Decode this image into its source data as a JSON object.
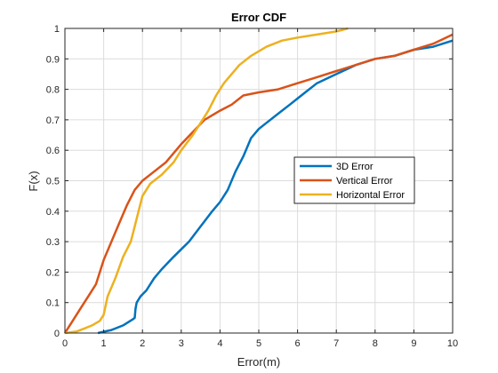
{
  "chart_data": {
    "type": "line",
    "title": "Error CDF",
    "xlabel": "Error(m)",
    "ylabel": "F(x)",
    "xlim": [
      0,
      10
    ],
    "ylim": [
      0,
      1
    ],
    "xticks": [
      "0",
      "1",
      "2",
      "3",
      "4",
      "5",
      "6",
      "7",
      "8",
      "9",
      "10"
    ],
    "yticks": [
      "0",
      "0.1",
      "0.2",
      "0.3",
      "0.4",
      "0.5",
      "0.6",
      "0.7",
      "0.8",
      "0.9",
      "1"
    ],
    "grid": true,
    "legend_position": "center-right",
    "series": [
      {
        "name": "3D Error",
        "color": "#0072BD",
        "points": [
          [
            0.85,
            0
          ],
          [
            1.2,
            0.01
          ],
          [
            1.5,
            0.025
          ],
          [
            1.75,
            0.045
          ],
          [
            1.8,
            0.05
          ],
          [
            1.82,
            0.08
          ],
          [
            1.85,
            0.1
          ],
          [
            1.95,
            0.12
          ],
          [
            2.1,
            0.14
          ],
          [
            2.3,
            0.18
          ],
          [
            2.5,
            0.21
          ],
          [
            2.8,
            0.25
          ],
          [
            3.0,
            0.275
          ],
          [
            3.2,
            0.3
          ],
          [
            3.5,
            0.35
          ],
          [
            3.8,
            0.4
          ],
          [
            4.0,
            0.43
          ],
          [
            4.2,
            0.47
          ],
          [
            4.4,
            0.53
          ],
          [
            4.6,
            0.58
          ],
          [
            4.8,
            0.64
          ],
          [
            5.0,
            0.67
          ],
          [
            5.2,
            0.69
          ],
          [
            5.5,
            0.72
          ],
          [
            5.8,
            0.75
          ],
          [
            6.0,
            0.77
          ],
          [
            6.2,
            0.79
          ],
          [
            6.5,
            0.82
          ],
          [
            7.0,
            0.85
          ],
          [
            7.5,
            0.88
          ],
          [
            8.0,
            0.9
          ],
          [
            8.5,
            0.91
          ],
          [
            9.0,
            0.93
          ],
          [
            9.5,
            0.94
          ],
          [
            10.0,
            0.96
          ]
        ]
      },
      {
        "name": "Vertical Error",
        "color": "#D95319",
        "points": [
          [
            0,
            0
          ],
          [
            0.2,
            0.04
          ],
          [
            0.4,
            0.08
          ],
          [
            0.6,
            0.12
          ],
          [
            0.8,
            0.16
          ],
          [
            1.0,
            0.24
          ],
          [
            1.2,
            0.3
          ],
          [
            1.4,
            0.36
          ],
          [
            1.6,
            0.42
          ],
          [
            1.8,
            0.47
          ],
          [
            2.0,
            0.5
          ],
          [
            2.3,
            0.53
          ],
          [
            2.6,
            0.56
          ],
          [
            3.0,
            0.62
          ],
          [
            3.3,
            0.66
          ],
          [
            3.6,
            0.7
          ],
          [
            4.0,
            0.73
          ],
          [
            4.3,
            0.75
          ],
          [
            4.6,
            0.78
          ],
          [
            5.0,
            0.79
          ],
          [
            5.5,
            0.8
          ],
          [
            6.0,
            0.82
          ],
          [
            6.5,
            0.84
          ],
          [
            7.0,
            0.86
          ],
          [
            7.5,
            0.88
          ],
          [
            8.0,
            0.9
          ],
          [
            8.5,
            0.91
          ],
          [
            9.0,
            0.93
          ],
          [
            9.5,
            0.95
          ],
          [
            10.0,
            0.98
          ]
        ]
      },
      {
        "name": "Horizontal Error",
        "color": "#EDB120",
        "points": [
          [
            0,
            0
          ],
          [
            0.3,
            0.005
          ],
          [
            0.5,
            0.015
          ],
          [
            0.7,
            0.025
          ],
          [
            0.9,
            0.04
          ],
          [
            1.0,
            0.06
          ],
          [
            1.1,
            0.12
          ],
          [
            1.3,
            0.18
          ],
          [
            1.5,
            0.25
          ],
          [
            1.7,
            0.3
          ],
          [
            1.8,
            0.35
          ],
          [
            1.9,
            0.4
          ],
          [
            2.0,
            0.45
          ],
          [
            2.2,
            0.49
          ],
          [
            2.5,
            0.52
          ],
          [
            2.8,
            0.56
          ],
          [
            3.0,
            0.6
          ],
          [
            3.3,
            0.65
          ],
          [
            3.5,
            0.69
          ],
          [
            3.7,
            0.73
          ],
          [
            3.9,
            0.78
          ],
          [
            4.1,
            0.82
          ],
          [
            4.3,
            0.85
          ],
          [
            4.5,
            0.88
          ],
          [
            4.8,
            0.91
          ],
          [
            5.2,
            0.94
          ],
          [
            5.6,
            0.96
          ],
          [
            6.0,
            0.97
          ],
          [
            6.5,
            0.98
          ],
          [
            7.0,
            0.99
          ],
          [
            7.3,
            1.0
          ]
        ]
      }
    ]
  }
}
